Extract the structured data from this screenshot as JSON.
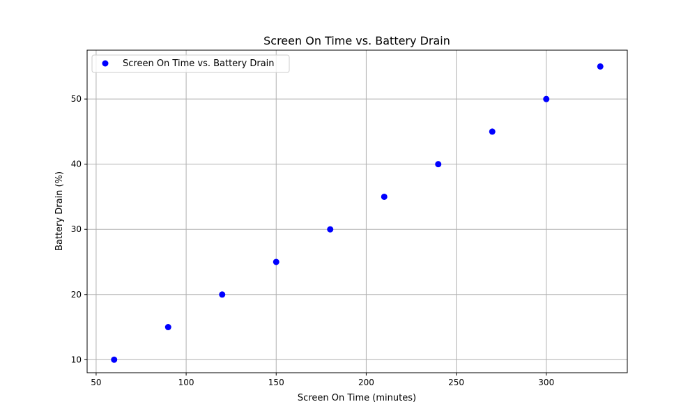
{
  "chart_data": {
    "type": "scatter",
    "title": "Screen On Time vs. Battery Drain",
    "xlabel": "Screen On Time (minutes)",
    "ylabel": "Battery Drain (%)",
    "xlim": [
      45,
      345
    ],
    "ylim": [
      8,
      57.5
    ],
    "x_ticks": [
      50,
      100,
      150,
      200,
      250,
      300
    ],
    "y_ticks": [
      10,
      20,
      30,
      40,
      50
    ],
    "grid": true,
    "legend_position": "top-left",
    "series": [
      {
        "name": "Screen On Time vs. Battery Drain",
        "color": "#0000ff",
        "x": [
          60,
          90,
          120,
          150,
          180,
          210,
          240,
          270,
          300,
          330
        ],
        "y": [
          10,
          15,
          20,
          25,
          30,
          35,
          40,
          45,
          50,
          55
        ]
      }
    ]
  }
}
